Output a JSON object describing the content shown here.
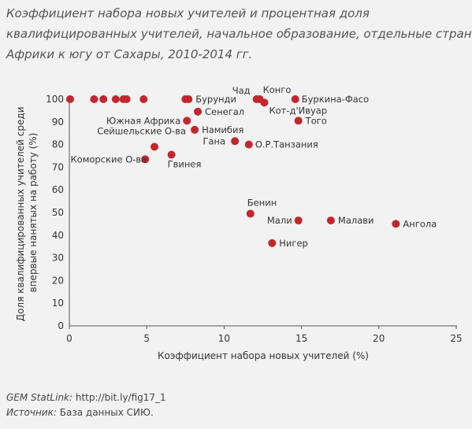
{
  "title_lines": [
    "Коэффициент набора новых учителей и процентная доля",
    "квалифицированных учителей, начальное образование, отдельные страны",
    "Африки к югу от Сахары, 2010-2014 гг."
  ],
  "chart_data": {
    "type": "scatter",
    "xlabel": "Коэффициент набора новых учителей (%)",
    "ylabel_lines": [
      "Доля квалифицированных учителей среди",
      "впервые нанятых на работу (%)"
    ],
    "xlim": [
      0,
      25
    ],
    "ylim": [
      0,
      100
    ],
    "xticks": [
      0,
      5,
      10,
      15,
      20,
      25
    ],
    "yticks": [
      0,
      10,
      20,
      30,
      40,
      50,
      60,
      70,
      80,
      90,
      100
    ],
    "grid": false,
    "marker_color": "#c1272d",
    "points": [
      {
        "label": "",
        "x": 0.05,
        "y": 100
      },
      {
        "label": "",
        "x": 1.6,
        "y": 100
      },
      {
        "label": "",
        "x": 2.2,
        "y": 100
      },
      {
        "label": "",
        "x": 3.0,
        "y": 100
      },
      {
        "label": "",
        "x": 3.5,
        "y": 100
      },
      {
        "label": "",
        "x": 3.7,
        "y": 100
      },
      {
        "label": "",
        "x": 4.8,
        "y": 100
      },
      {
        "label": "",
        "x": 7.5,
        "y": 100
      },
      {
        "label": "Бурунди",
        "x": 7.7,
        "y": 100
      },
      {
        "label": "Чад",
        "x": 12.1,
        "y": 100
      },
      {
        "label": "Конго",
        "x": 12.3,
        "y": 100
      },
      {
        "label": "Буркина-Фасо",
        "x": 14.6,
        "y": 100
      },
      {
        "label": "Кот-д'Ивуар",
        "x": 12.6,
        "y": 98.5
      },
      {
        "label": "Сенегал",
        "x": 8.3,
        "y": 94.5
      },
      {
        "label": "Южная Африка",
        "x": 7.6,
        "y": 90.5
      },
      {
        "label": "Того",
        "x": 14.8,
        "y": 90.5
      },
      {
        "label": "Намибия",
        "x": 8.1,
        "y": 86.5
      },
      {
        "label": "Гана",
        "x": 10.7,
        "y": 81.5
      },
      {
        "label": "О.Р.Танзания",
        "x": 11.6,
        "y": 80
      },
      {
        "label": "Сейшельские О-ва",
        "x": 5.5,
        "y": 79
      },
      {
        "label": "Гвинея",
        "x": 6.6,
        "y": 75.5
      },
      {
        "label": "Коморские О-ва",
        "x": 4.9,
        "y": 73.5
      },
      {
        "label": "Бенин",
        "x": 11.7,
        "y": 49.5
      },
      {
        "label": "Мали",
        "x": 14.8,
        "y": 46.5
      },
      {
        "label": "Малави",
        "x": 16.9,
        "y": 46.5
      },
      {
        "label": "Ангола",
        "x": 21.1,
        "y": 45
      },
      {
        "label": "Нигер",
        "x": 13.1,
        "y": 36.5
      }
    ]
  },
  "footer": {
    "statlink_label": "GEM StatLink:",
    "statlink_url": "http://bit.ly/fig17_1",
    "source_label": "Источник:",
    "source_text": "База данных СИЮ."
  }
}
